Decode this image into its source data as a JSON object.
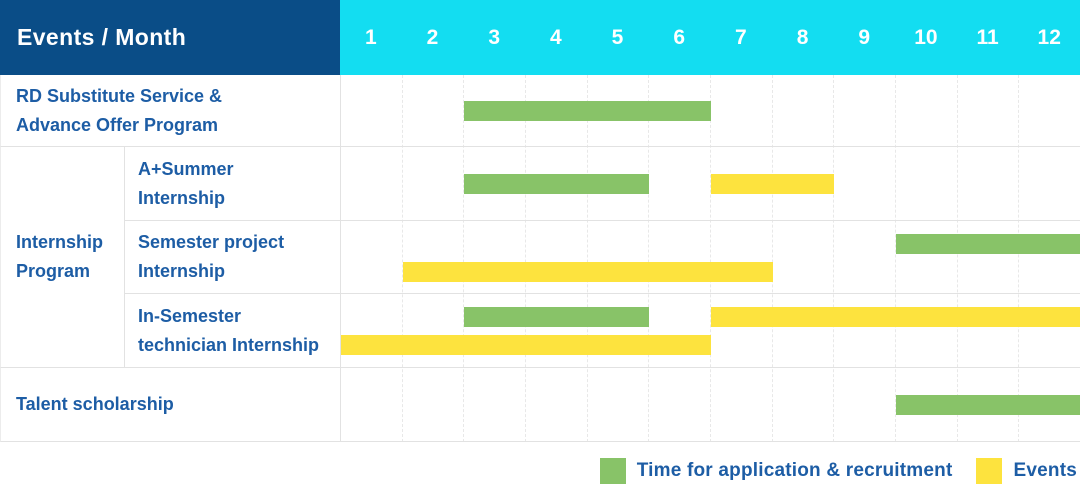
{
  "header": {
    "title": "Events / Month"
  },
  "colors": {
    "header_navy": "#0a4d87",
    "header_cyan": "#13ddf1",
    "bar_green": "#88c368",
    "bar_yellow": "#fde33e",
    "label_blue": "#1d5da5"
  },
  "chart_data": {
    "type": "gantt",
    "x_unit": "month",
    "x_range": [
      1,
      12
    ],
    "months": [
      "1",
      "2",
      "3",
      "4",
      "5",
      "6",
      "7",
      "8",
      "9",
      "10",
      "11",
      "12"
    ],
    "corner_title": "Events / Month",
    "group": {
      "label": "Internship Program",
      "lines": [
        "Internship",
        "Program"
      ],
      "member_rows": [
        "A+Summer Internship",
        "Semester project Internship",
        "In-Semester technician Internship"
      ]
    },
    "rows": [
      {
        "label": "RD Substitute Service & Advance Offer Program",
        "lines": [
          "RD Substitute Service &",
          "Advance Offer Program"
        ],
        "group": "",
        "bars": [
          {
            "kind": "application-recruitment",
            "color": "bar_green",
            "start_month": 3,
            "end_month": 6,
            "lane": "single"
          }
        ]
      },
      {
        "label": "A+Summer Internship",
        "lines": [
          "A+Summer",
          "Internship"
        ],
        "group": "Internship Program",
        "bars": [
          {
            "kind": "application-recruitment",
            "color": "bar_green",
            "start_month": 3,
            "end_month": 5,
            "lane": "single"
          },
          {
            "kind": "event",
            "color": "bar_yellow",
            "start_month": 7,
            "end_month": 8,
            "lane": "single"
          }
        ]
      },
      {
        "label": "Semester project Internship",
        "lines": [
          "Semester project",
          "Internship"
        ],
        "group": "Internship Program",
        "bars": [
          {
            "kind": "application-recruitment",
            "color": "bar_green",
            "start_month": 10,
            "end_month": 12,
            "lane": "top"
          },
          {
            "kind": "event",
            "color": "bar_yellow",
            "start_month": 2,
            "end_month": 7,
            "lane": "bottom"
          }
        ]
      },
      {
        "label": "In-Semester technician Internship",
        "lines": [
          "In-Semester",
          "technician Internship"
        ],
        "group": "Internship Program",
        "bars": [
          {
            "kind": "application-recruitment",
            "color": "bar_green",
            "start_month": 3,
            "end_month": 5,
            "lane": "top"
          },
          {
            "kind": "event",
            "color": "bar_yellow",
            "start_month": 7,
            "end_month": 12,
            "lane": "top"
          },
          {
            "kind": "event",
            "color": "bar_yellow",
            "start_month": 1,
            "end_month": 6,
            "lane": "bottom"
          }
        ]
      },
      {
        "label": "Talent scholarship",
        "lines": [
          "Talent scholarship"
        ],
        "group": "",
        "bars": [
          {
            "kind": "application-recruitment",
            "color": "bar_green",
            "start_month": 10,
            "end_month": 12,
            "lane": "single"
          }
        ]
      }
    ]
  },
  "legend": {
    "items": [
      {
        "color": "bar_green",
        "label": "Time for application & recruitment"
      },
      {
        "color": "bar_yellow",
        "label": "Events"
      }
    ]
  }
}
